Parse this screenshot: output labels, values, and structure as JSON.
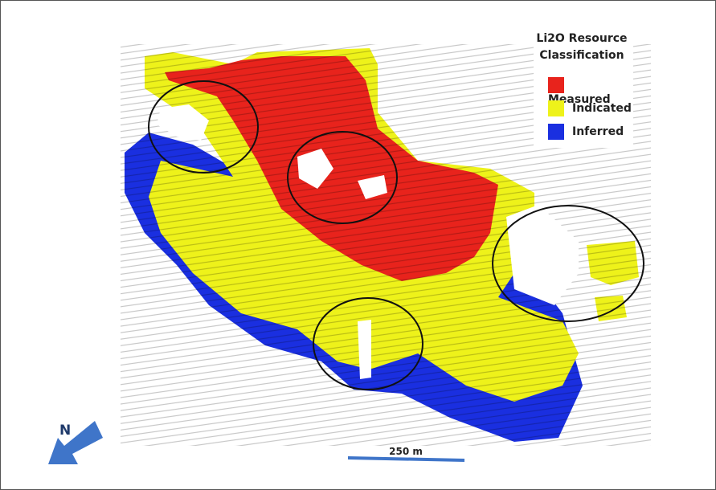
{
  "legend": {
    "title": "Li2O Resource Classification",
    "items": [
      {
        "label": "Measured",
        "color": "#e8231c"
      },
      {
        "label": "Indicated",
        "color": "#eef21a"
      },
      {
        "label": "Inferred",
        "color": "#1a2fe0"
      }
    ]
  },
  "north_arrow": {
    "label": "N"
  },
  "scale_bar": {
    "label": "250 m"
  }
}
